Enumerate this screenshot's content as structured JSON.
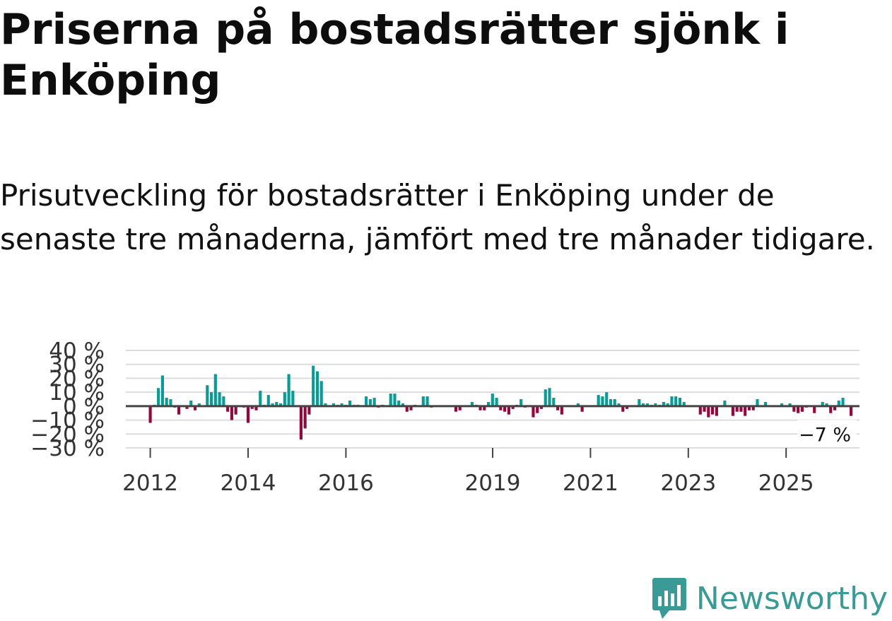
{
  "title": "Priserna på bostadsrätter sjönk i Enköping",
  "subtitle": "Prisutveckling för bostadsrätter i Enköping under de senaste tre månaderna, jämfört med tre månader tidigare.",
  "brand": "Newsworthy",
  "colors": {
    "positive": "#0a9b95",
    "negative": "#93073e",
    "grid": "#dddddd",
    "zero": "#444444",
    "brand": "#3a9a96"
  },
  "chart_data": {
    "type": "bar",
    "title": "Priserna på bostadsrätter sjönk i Enköping",
    "xlabel": "",
    "ylabel": "",
    "ylim": [
      -30,
      40
    ],
    "yticks": [
      40,
      30,
      20,
      10,
      0,
      -10,
      -20,
      -30
    ],
    "ytick_labels": [
      "40 %",
      "30 %",
      "20 %",
      "10 %",
      "0 %",
      "−10 %",
      "−20 %",
      "−30 %"
    ],
    "xlim": [
      2011.5,
      2026.5
    ],
    "xticks": [
      2012,
      2014,
      2016,
      2019,
      2021,
      2023,
      2025
    ],
    "xtick_labels": [
      "2012",
      "2014",
      "2016",
      "2019",
      "2021",
      "2023",
      "2025"
    ],
    "start": 2012.0,
    "step": 0.0833,
    "last_value_label": "−7 %",
    "values": [
      -12,
      1,
      13,
      22,
      6,
      5,
      -1,
      -6,
      0,
      -2,
      4,
      -3,
      2,
      0,
      15,
      10,
      23,
      10,
      7,
      -4,
      -10,
      -6,
      0,
      -1,
      -12,
      -2,
      -3,
      11,
      1,
      8,
      2,
      3,
      2,
      10,
      23,
      11,
      0,
      -24,
      -16,
      -6,
      29,
      25,
      18,
      2,
      0,
      2,
      1,
      2,
      1,
      4,
      1,
      1,
      0,
      7,
      5,
      6,
      -1,
      1,
      0,
      9,
      9,
      4,
      2,
      -4,
      -3,
      1,
      0,
      7,
      7,
      -1,
      0,
      0,
      0,
      0,
      0,
      -4,
      -3,
      0,
      0,
      3,
      1,
      -3,
      -3,
      3,
      9,
      6,
      -3,
      -4,
      -6,
      -2,
      1,
      5,
      -1,
      0,
      -8,
      -5,
      -2,
      12,
      13,
      6,
      -3,
      -6,
      0,
      0,
      0,
      2,
      -4,
      0,
      0,
      0,
      8,
      7,
      10,
      5,
      5,
      2,
      -4,
      -2,
      0,
      0,
      5,
      2,
      2,
      1,
      2,
      1,
      3,
      2,
      7,
      7,
      6,
      3,
      0,
      0,
      0,
      -6,
      -4,
      -8,
      -6,
      -7,
      0,
      4,
      0,
      -7,
      -4,
      -4,
      -7,
      -3,
      -3,
      5,
      0,
      3,
      0,
      0,
      0,
      2,
      0,
      2,
      -4,
      -5,
      -4,
      -1,
      0,
      -5,
      0,
      3,
      2,
      -5,
      -3,
      4,
      6,
      0,
      -7
    ]
  }
}
